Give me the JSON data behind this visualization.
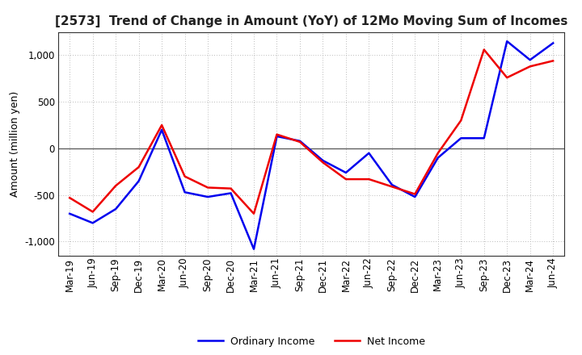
{
  "title": "[2573]  Trend of Change in Amount (YoY) of 12Mo Moving Sum of Incomes",
  "ylabel": "Amount (million yen)",
  "x_labels": [
    "Mar-19",
    "Jun-19",
    "Sep-19",
    "Dec-19",
    "Mar-20",
    "Jun-20",
    "Sep-20",
    "Dec-20",
    "Mar-21",
    "Jun-21",
    "Sep-21",
    "Dec-21",
    "Mar-22",
    "Jun-22",
    "Sep-22",
    "Dec-22",
    "Mar-23",
    "Jun-23",
    "Sep-23",
    "Dec-23",
    "Mar-24",
    "Jun-24"
  ],
  "ordinary_income": [
    -700,
    -800,
    -650,
    -350,
    200,
    -470,
    -520,
    -480,
    -1080,
    130,
    80,
    -130,
    -260,
    -50,
    -390,
    -520,
    -100,
    110,
    110,
    1150,
    950,
    1130
  ],
  "net_income": [
    -530,
    -680,
    -400,
    -200,
    250,
    -300,
    -420,
    -430,
    -700,
    150,
    70,
    -150,
    -330,
    -330,
    -410,
    -490,
    -50,
    300,
    1060,
    760,
    880,
    940
  ],
  "ordinary_income_color": "#0000EE",
  "net_income_color": "#EE0000",
  "bg_color": "#FFFFFF",
  "plot_bg_color": "#FFFFFF",
  "grid_color": "#BBBBBB",
  "ylim": [
    -1150,
    1250
  ],
  "yticks": [
    -1000,
    -500,
    0,
    500,
    1000
  ],
  "legend_labels": [
    "Ordinary Income",
    "Net Income"
  ],
  "line_width": 1.8,
  "title_fontsize": 11,
  "axis_fontsize": 8.5,
  "ylabel_fontsize": 9
}
